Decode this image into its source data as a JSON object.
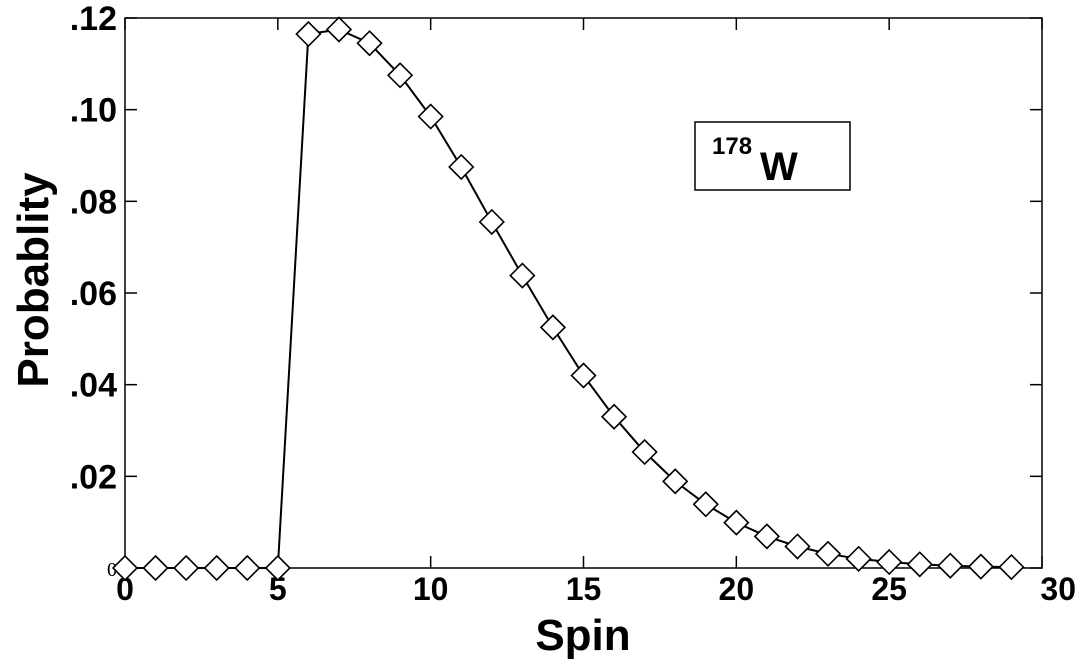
{
  "chart_data": {
    "type": "line",
    "xlabel": "Spin",
    "ylabel": "Probablity",
    "xlim": [
      0,
      30
    ],
    "ylim": [
      0,
      0.12
    ],
    "x_ticks": [
      {
        "value": 0,
        "label": "0"
      },
      {
        "value": 5,
        "label": "5"
      },
      {
        "value": 10,
        "label": "10"
      },
      {
        "value": 15,
        "label": "15"
      },
      {
        "value": 20,
        "label": "20"
      },
      {
        "value": 25,
        "label": "25"
      },
      {
        "value": 30,
        "label": "30"
      }
    ],
    "y_ticks": [
      {
        "value": 0,
        "label": "0"
      },
      {
        "value": 0.02,
        "label": ".02"
      },
      {
        "value": 0.04,
        "label": ".04"
      },
      {
        "value": 0.06,
        "label": ".06"
      },
      {
        "value": 0.08,
        "label": ".08"
      },
      {
        "value": 0.1,
        "label": ".10"
      },
      {
        "value": 0.12,
        "label": ".12"
      }
    ],
    "grid": false,
    "annotation": {
      "superscript": "178",
      "text": "W",
      "placement": "top-right"
    },
    "series": [
      {
        "marker": "diamond",
        "line_color": "#000000",
        "x": [
          0,
          1,
          2,
          3,
          4,
          5,
          6,
          7,
          8,
          9,
          10,
          11,
          12,
          13,
          14,
          15,
          16,
          17,
          18,
          19,
          20,
          21,
          22,
          23,
          24,
          25,
          26,
          27,
          28,
          29
        ],
        "y": [
          0,
          0,
          0,
          0,
          0,
          0,
          0.1165,
          0.1175,
          0.1145,
          0.1075,
          0.0985,
          0.0875,
          0.0755,
          0.0638,
          0.0525,
          0.042,
          0.033,
          0.0253,
          0.0189,
          0.0139,
          0.0099,
          0.0069,
          0.0047,
          0.0031,
          0.002,
          0.0013,
          0.0008,
          0.0005,
          0.0003,
          0.0002
        ]
      }
    ]
  }
}
